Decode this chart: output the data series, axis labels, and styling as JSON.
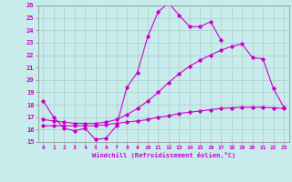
{
  "xlabel": "Windchill (Refroidissement éolien,°C)",
  "xlim": [
    -0.5,
    23.5
  ],
  "ylim": [
    15,
    26
  ],
  "xticks": [
    0,
    1,
    2,
    3,
    4,
    5,
    6,
    7,
    8,
    9,
    10,
    11,
    12,
    13,
    14,
    15,
    16,
    17,
    18,
    19,
    20,
    21,
    22,
    23
  ],
  "yticks": [
    15,
    16,
    17,
    18,
    19,
    20,
    21,
    22,
    23,
    24,
    25,
    26
  ],
  "background_color": "#c8ecec",
  "grid_color": "#aacfcf",
  "line_color": "#cc00cc",
  "line1_x": [
    0,
    1,
    2,
    3,
    4,
    5,
    6,
    7,
    8,
    9,
    10,
    11,
    12,
    13,
    14,
    15,
    16,
    17
  ],
  "line1_y": [
    18.3,
    17.0,
    16.1,
    15.9,
    16.1,
    15.2,
    15.3,
    16.3,
    19.4,
    20.6,
    23.5,
    25.5,
    26.2,
    25.2,
    24.3,
    24.3,
    24.7,
    23.2
  ],
  "line2_x": [
    0,
    1,
    2,
    3,
    4,
    5,
    6,
    7,
    8,
    9,
    10,
    11,
    12,
    13,
    14,
    15,
    16,
    17,
    18,
    19,
    20,
    21,
    22,
    23
  ],
  "line2_y": [
    16.8,
    16.7,
    16.6,
    16.5,
    16.5,
    16.5,
    16.6,
    16.8,
    17.2,
    17.7,
    18.3,
    19.0,
    19.8,
    20.5,
    21.1,
    21.6,
    22.0,
    22.4,
    22.7,
    22.9,
    21.8,
    21.7,
    19.3,
    17.8
  ],
  "line3_x": [
    0,
    1,
    2,
    3,
    4,
    5,
    6,
    7,
    8,
    9,
    10,
    11,
    12,
    13,
    14,
    15,
    16,
    17,
    18,
    19,
    20,
    21,
    22,
    23
  ],
  "line3_y": [
    16.3,
    16.3,
    16.3,
    16.3,
    16.3,
    16.3,
    16.4,
    16.5,
    16.6,
    16.7,
    16.8,
    17.0,
    17.1,
    17.3,
    17.4,
    17.5,
    17.6,
    17.7,
    17.75,
    17.8,
    17.8,
    17.8,
    17.75,
    17.7
  ]
}
